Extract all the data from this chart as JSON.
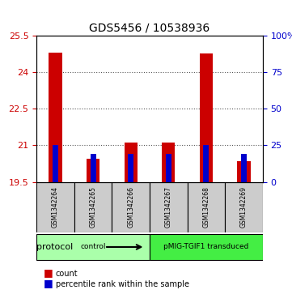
{
  "title": "GDS5456 / 10538936",
  "samples": [
    "GSM1342264",
    "GSM1342265",
    "GSM1342266",
    "GSM1342267",
    "GSM1342268",
    "GSM1342269"
  ],
  "counts": [
    24.8,
    20.45,
    21.1,
    21.1,
    24.75,
    20.35
  ],
  "percentile_ranks": [
    21.0,
    20.65,
    20.65,
    20.65,
    21.0,
    20.65
  ],
  "ylim_left": [
    19.5,
    25.5
  ],
  "yticks_left": [
    19.5,
    21.0,
    22.5,
    24.0,
    25.5
  ],
  "ylabels_left": [
    "19.5",
    "21",
    "22.5",
    "24",
    "25.5"
  ],
  "yticks_right": [
    0,
    25,
    50,
    75,
    100
  ],
  "ylabels_right": [
    "0",
    "25",
    "50",
    "75",
    "100%"
  ],
  "bar_bottom": 19.5,
  "bar_color": "#cc0000",
  "dot_color": "#0000cc",
  "groups": [
    {
      "label": "control",
      "samples": [
        0,
        1,
        2
      ],
      "color": "#aaffaa"
    },
    {
      "label": "pMIG-TGIF1 transduced",
      "samples": [
        3,
        4,
        5
      ],
      "color": "#44ee44"
    }
  ],
  "protocol_label": "protocol",
  "legend_items": [
    {
      "color": "#cc0000",
      "label": "count"
    },
    {
      "color": "#0000cc",
      "label": "percentile rank within the sample"
    }
  ],
  "grid_color": "#555555",
  "background_color": "#ffffff",
  "sample_box_color": "#cccccc"
}
